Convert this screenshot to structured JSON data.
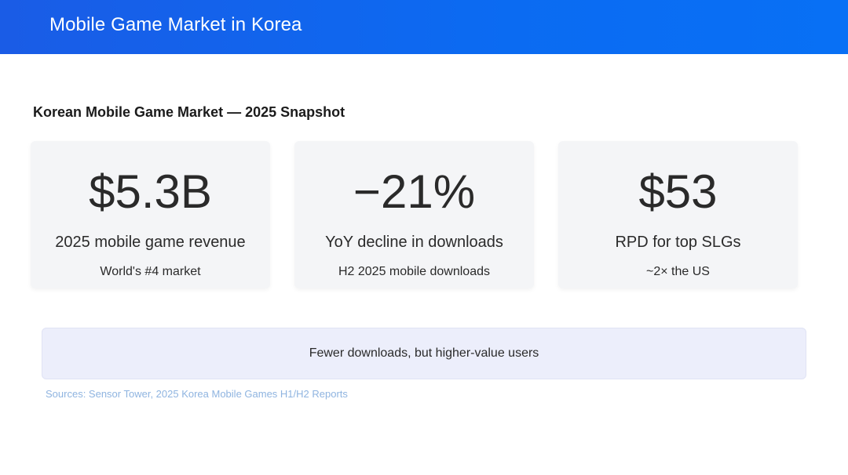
{
  "header": {
    "title": "Mobile Game Market in Korea",
    "color": "#0b6bf2"
  },
  "section": {
    "title": "Korean Mobile Game Market — 2025 Snapshot"
  },
  "cards": [
    {
      "value": "$5.3B",
      "label": "2025 mobile game revenue",
      "sub": "World's #4 market"
    },
    {
      "value": "−21%",
      "label": "YoY decline in downloads",
      "sub": "H2 2025 mobile downloads"
    },
    {
      "value": "$53",
      "label": "RPD for top SLGs",
      "sub": "~2× the US"
    }
  ],
  "callout": {
    "text": "Fewer downloads, but higher-value users"
  },
  "sources": {
    "text": "Sources: Sensor Tower, 2025 Korea Mobile Games H1/H2 Reports"
  }
}
